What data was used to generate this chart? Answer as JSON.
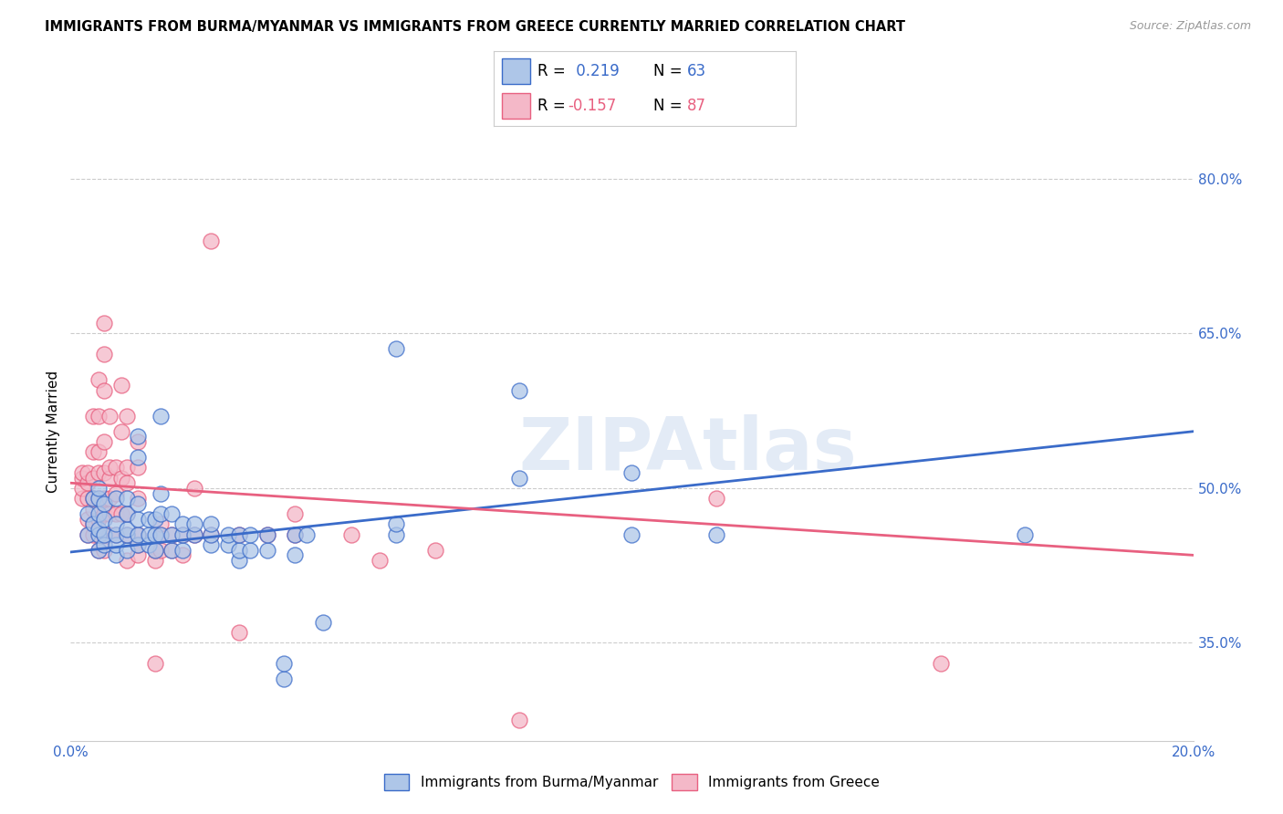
{
  "title": "IMMIGRANTS FROM BURMA/MYANMAR VS IMMIGRANTS FROM GREECE CURRENTLY MARRIED CORRELATION CHART",
  "source": "Source: ZipAtlas.com",
  "ylabel": "Currently Married",
  "ytick_labels": [
    "35.0%",
    "50.0%",
    "65.0%",
    "80.0%"
  ],
  "ytick_values": [
    0.35,
    0.5,
    0.65,
    0.8
  ],
  "xlim": [
    0.0,
    0.2
  ],
  "ylim": [
    0.255,
    0.855
  ],
  "blue_color": "#AEC6E8",
  "pink_color": "#F4B8C8",
  "blue_line_color": "#3A6BC9",
  "pink_line_color": "#E86080",
  "watermark": "ZIPAtlas",
  "blue_scatter": [
    [
      0.003,
      0.455
    ],
    [
      0.003,
      0.475
    ],
    [
      0.004,
      0.465
    ],
    [
      0.004,
      0.49
    ],
    [
      0.005,
      0.44
    ],
    [
      0.005,
      0.455
    ],
    [
      0.005,
      0.46
    ],
    [
      0.005,
      0.475
    ],
    [
      0.005,
      0.49
    ],
    [
      0.005,
      0.5
    ],
    [
      0.006,
      0.445
    ],
    [
      0.006,
      0.455
    ],
    [
      0.006,
      0.47
    ],
    [
      0.006,
      0.485
    ],
    [
      0.008,
      0.435
    ],
    [
      0.008,
      0.445
    ],
    [
      0.008,
      0.455
    ],
    [
      0.008,
      0.465
    ],
    [
      0.008,
      0.49
    ],
    [
      0.01,
      0.44
    ],
    [
      0.01,
      0.455
    ],
    [
      0.01,
      0.46
    ],
    [
      0.01,
      0.475
    ],
    [
      0.01,
      0.49
    ],
    [
      0.012,
      0.445
    ],
    [
      0.012,
      0.455
    ],
    [
      0.012,
      0.47
    ],
    [
      0.012,
      0.485
    ],
    [
      0.012,
      0.53
    ],
    [
      0.012,
      0.55
    ],
    [
      0.014,
      0.445
    ],
    [
      0.014,
      0.455
    ],
    [
      0.014,
      0.47
    ],
    [
      0.015,
      0.44
    ],
    [
      0.015,
      0.455
    ],
    [
      0.015,
      0.47
    ],
    [
      0.016,
      0.455
    ],
    [
      0.016,
      0.475
    ],
    [
      0.016,
      0.495
    ],
    [
      0.016,
      0.57
    ],
    [
      0.018,
      0.44
    ],
    [
      0.018,
      0.455
    ],
    [
      0.018,
      0.475
    ],
    [
      0.02,
      0.44
    ],
    [
      0.02,
      0.455
    ],
    [
      0.02,
      0.465
    ],
    [
      0.022,
      0.455
    ],
    [
      0.022,
      0.465
    ],
    [
      0.025,
      0.445
    ],
    [
      0.025,
      0.455
    ],
    [
      0.025,
      0.465
    ],
    [
      0.028,
      0.445
    ],
    [
      0.028,
      0.455
    ],
    [
      0.03,
      0.43
    ],
    [
      0.03,
      0.44
    ],
    [
      0.03,
      0.455
    ],
    [
      0.032,
      0.44
    ],
    [
      0.032,
      0.455
    ],
    [
      0.035,
      0.44
    ],
    [
      0.035,
      0.455
    ],
    [
      0.038,
      0.315
    ],
    [
      0.038,
      0.33
    ],
    [
      0.04,
      0.435
    ],
    [
      0.04,
      0.455
    ],
    [
      0.042,
      0.455
    ],
    [
      0.045,
      0.37
    ],
    [
      0.058,
      0.455
    ],
    [
      0.058,
      0.465
    ],
    [
      0.058,
      0.635
    ],
    [
      0.08,
      0.51
    ],
    [
      0.08,
      0.595
    ],
    [
      0.1,
      0.455
    ],
    [
      0.1,
      0.515
    ],
    [
      0.115,
      0.455
    ],
    [
      0.17,
      0.455
    ]
  ],
  "pink_scatter": [
    [
      0.002,
      0.49
    ],
    [
      0.002,
      0.5
    ],
    [
      0.002,
      0.51
    ],
    [
      0.002,
      0.515
    ],
    [
      0.003,
      0.455
    ],
    [
      0.003,
      0.47
    ],
    [
      0.003,
      0.49
    ],
    [
      0.003,
      0.505
    ],
    [
      0.003,
      0.515
    ],
    [
      0.004,
      0.455
    ],
    [
      0.004,
      0.465
    ],
    [
      0.004,
      0.48
    ],
    [
      0.004,
      0.49
    ],
    [
      0.004,
      0.51
    ],
    [
      0.004,
      0.535
    ],
    [
      0.004,
      0.57
    ],
    [
      0.005,
      0.44
    ],
    [
      0.005,
      0.455
    ],
    [
      0.005,
      0.47
    ],
    [
      0.005,
      0.49
    ],
    [
      0.005,
      0.515
    ],
    [
      0.005,
      0.535
    ],
    [
      0.005,
      0.57
    ],
    [
      0.005,
      0.605
    ],
    [
      0.006,
      0.44
    ],
    [
      0.006,
      0.455
    ],
    [
      0.006,
      0.475
    ],
    [
      0.006,
      0.49
    ],
    [
      0.006,
      0.515
    ],
    [
      0.006,
      0.545
    ],
    [
      0.006,
      0.595
    ],
    [
      0.006,
      0.63
    ],
    [
      0.006,
      0.66
    ],
    [
      0.007,
      0.455
    ],
    [
      0.007,
      0.475
    ],
    [
      0.007,
      0.49
    ],
    [
      0.007,
      0.51
    ],
    [
      0.007,
      0.52
    ],
    [
      0.007,
      0.57
    ],
    [
      0.008,
      0.455
    ],
    [
      0.008,
      0.475
    ],
    [
      0.008,
      0.495
    ],
    [
      0.008,
      0.52
    ],
    [
      0.009,
      0.475
    ],
    [
      0.009,
      0.51
    ],
    [
      0.009,
      0.555
    ],
    [
      0.009,
      0.6
    ],
    [
      0.01,
      0.43
    ],
    [
      0.01,
      0.455
    ],
    [
      0.01,
      0.475
    ],
    [
      0.01,
      0.505
    ],
    [
      0.01,
      0.52
    ],
    [
      0.01,
      0.57
    ],
    [
      0.012,
      0.435
    ],
    [
      0.012,
      0.445
    ],
    [
      0.012,
      0.455
    ],
    [
      0.012,
      0.49
    ],
    [
      0.012,
      0.52
    ],
    [
      0.012,
      0.545
    ],
    [
      0.015,
      0.33
    ],
    [
      0.015,
      0.43
    ],
    [
      0.015,
      0.44
    ],
    [
      0.016,
      0.44
    ],
    [
      0.016,
      0.455
    ],
    [
      0.016,
      0.465
    ],
    [
      0.018,
      0.44
    ],
    [
      0.018,
      0.455
    ],
    [
      0.02,
      0.435
    ],
    [
      0.02,
      0.455
    ],
    [
      0.022,
      0.455
    ],
    [
      0.022,
      0.5
    ],
    [
      0.025,
      0.455
    ],
    [
      0.025,
      0.74
    ],
    [
      0.03,
      0.36
    ],
    [
      0.03,
      0.455
    ],
    [
      0.035,
      0.455
    ],
    [
      0.04,
      0.455
    ],
    [
      0.04,
      0.475
    ],
    [
      0.05,
      0.455
    ],
    [
      0.055,
      0.43
    ],
    [
      0.065,
      0.44
    ],
    [
      0.08,
      0.275
    ],
    [
      0.115,
      0.49
    ],
    [
      0.155,
      0.33
    ]
  ],
  "blue_line_x": [
    0.0,
    0.2
  ],
  "blue_line_y": [
    0.438,
    0.555
  ],
  "pink_line_x": [
    0.0,
    0.2
  ],
  "pink_line_y": [
    0.505,
    0.435
  ]
}
